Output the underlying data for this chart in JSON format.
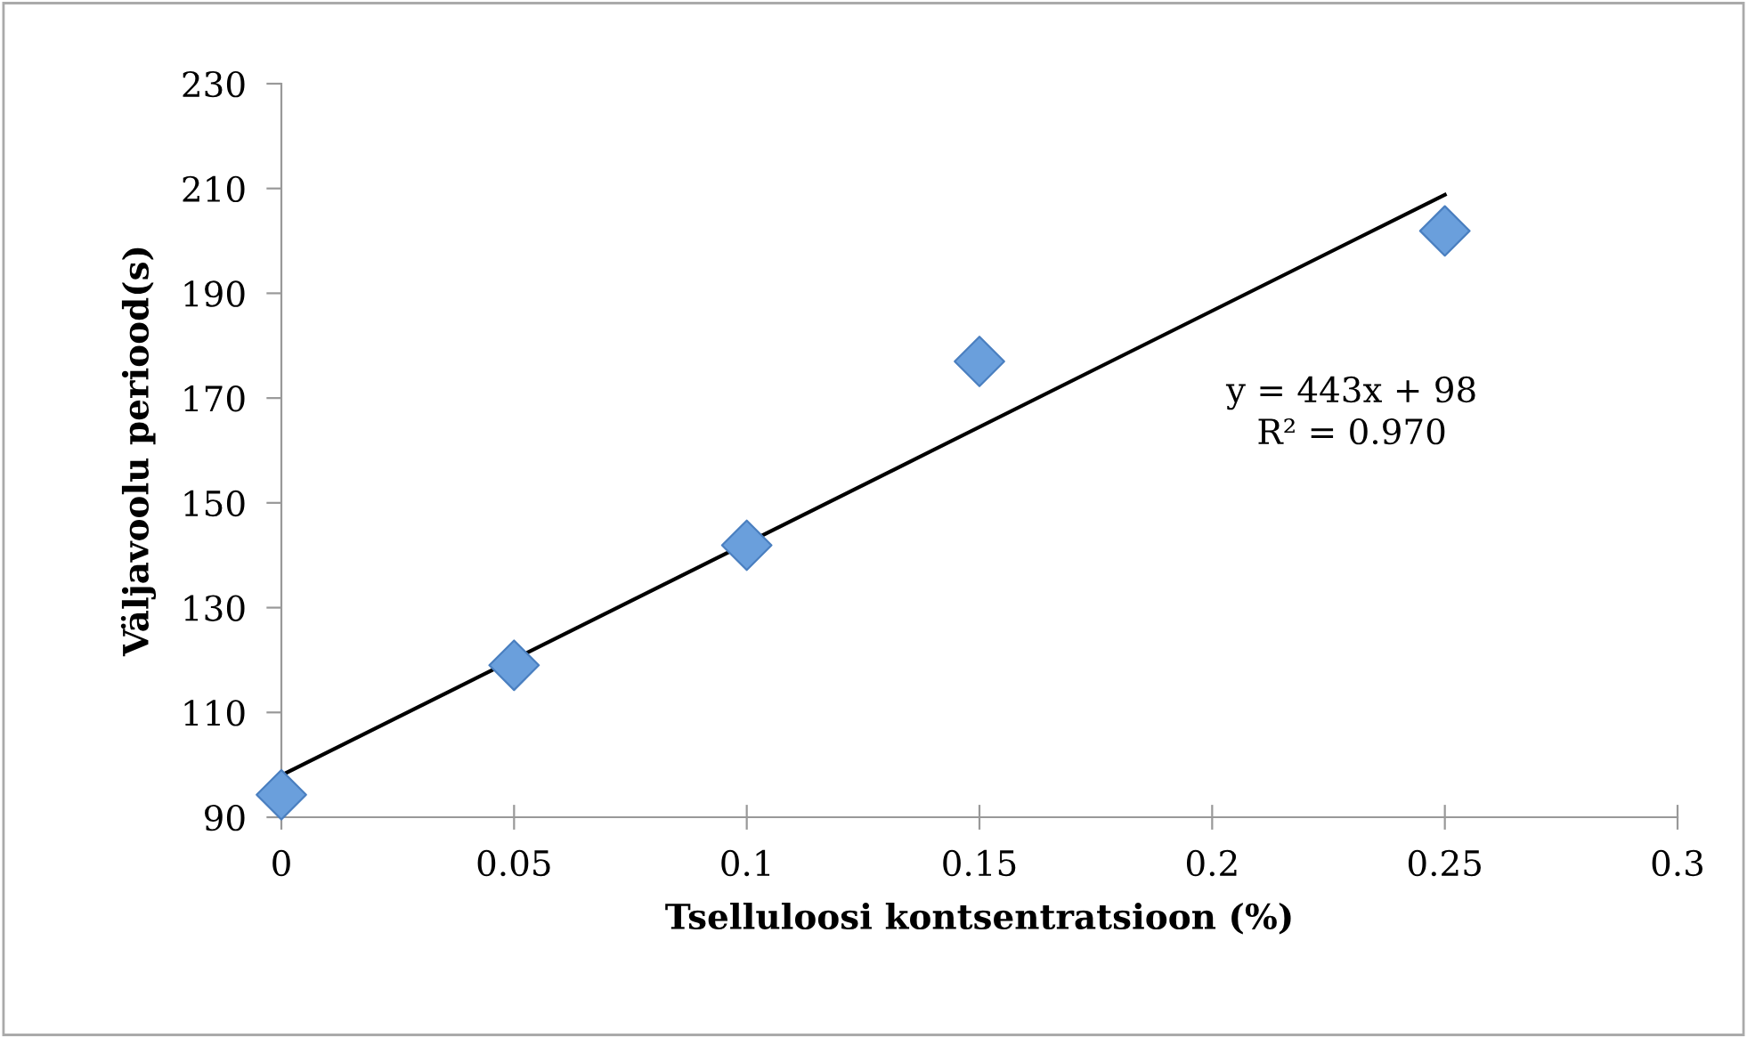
{
  "chart_data": {
    "type": "scatter",
    "xlabel": "Tselluloosi kontsentratsioon (%)",
    "ylabel": "Väljavoolu periood(s)",
    "x": [
      0,
      0.05,
      0.1,
      0.15,
      0.25
    ],
    "series": [
      {
        "color": "#6a9fdc",
        "marker": "diamond",
        "values": [
          94.3,
          119,
          141.9,
          177,
          201.9
        ]
      },
      {
        "type": "line",
        "color": "#000000",
        "line_style": "solid",
        "marker": "none",
        "x": [
          0,
          0.25
        ],
        "values": [
          98,
          208.8
        ]
      }
    ],
    "xlim": [
      0,
      0.3
    ],
    "xticks": [
      0,
      0.05,
      0.1,
      0.15,
      0.2,
      0.25,
      0.3
    ],
    "ylim": [
      90,
      230
    ],
    "yticks": [
      90,
      110,
      130,
      150,
      170,
      190,
      210,
      230
    ],
    "annotations": [
      "y = 443x + 98\nR² = 0.970"
    ],
    "grid": false,
    "legend": false
  }
}
